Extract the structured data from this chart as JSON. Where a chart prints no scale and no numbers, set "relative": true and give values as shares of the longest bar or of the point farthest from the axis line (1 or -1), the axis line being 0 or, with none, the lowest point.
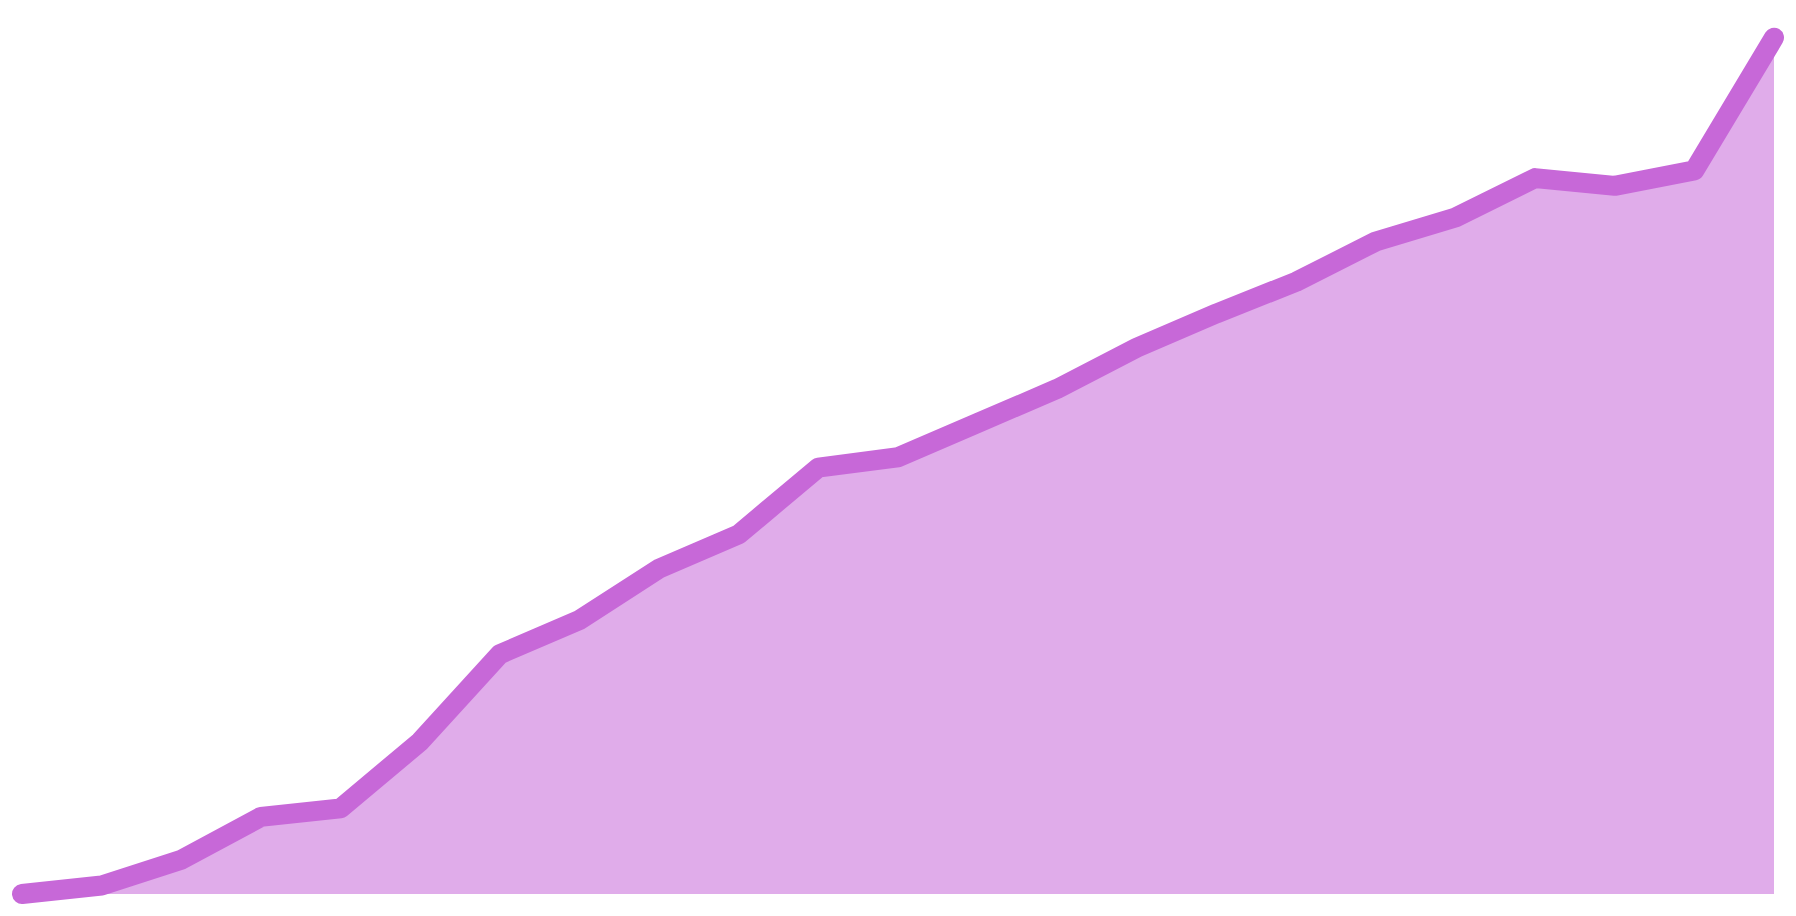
{
  "chart_data": {
    "type": "area",
    "relative": true,
    "categories": [
      null,
      null,
      null,
      null,
      null,
      null,
      null,
      null,
      null,
      null,
      null,
      null,
      null,
      null,
      null,
      null,
      null,
      null,
      null,
      null,
      null,
      null,
      null
    ],
    "series": [
      {
        "color": "#c768d8",
        "values": [
          0,
          0.01,
          0.04,
          0.09,
          0.1,
          0.178,
          0.28,
          0.32,
          0.38,
          0.42,
          0.498,
          0.51,
          0.55,
          0.59,
          0.638,
          0.678,
          0.715,
          0.762,
          0.79,
          0.836,
          0.827,
          0.845,
          1
        ]
      }
    ]
  }
}
